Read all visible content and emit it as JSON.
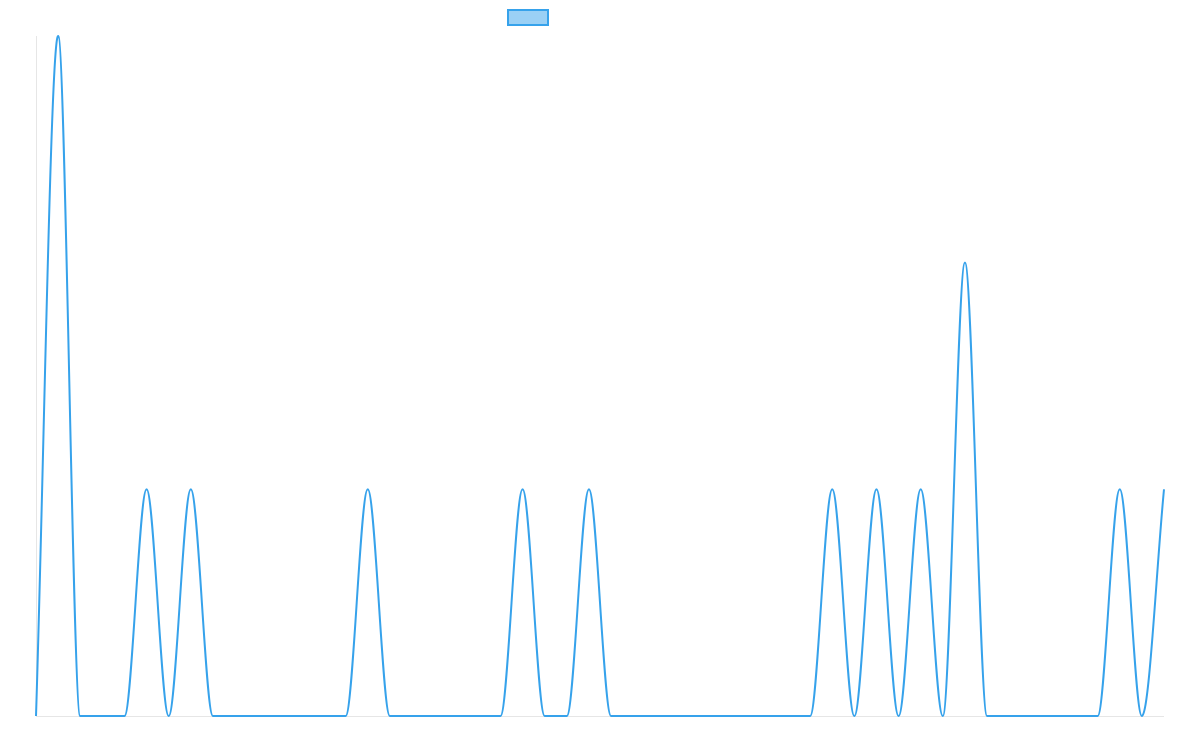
{
  "chart_data": {
    "type": "line",
    "x": [
      0,
      1,
      2,
      3,
      4,
      5,
      6,
      7,
      8,
      9,
      10,
      11,
      12,
      13,
      14,
      15,
      16,
      17,
      18,
      19,
      20,
      21,
      22,
      23,
      24,
      25,
      26,
      27,
      28,
      29,
      30,
      31,
      32,
      33,
      34,
      35,
      36,
      37,
      38,
      39,
      40,
      41,
      42,
      43,
      44,
      45,
      46,
      47,
      48,
      49,
      50,
      51
    ],
    "series": [
      {
        "values": [
          0,
          3,
          0,
          0,
          0,
          1,
          0,
          1,
          0,
          0,
          0,
          0,
          0,
          0,
          0,
          1,
          0,
          0,
          0,
          0,
          0,
          0,
          1,
          0,
          0,
          1,
          0,
          0,
          0,
          0,
          0,
          0,
          0,
          0,
          0,
          0,
          1,
          0,
          1,
          0,
          1,
          0,
          2,
          0,
          0,
          0,
          0,
          0,
          0,
          1,
          0,
          1
        ],
        "color": "#36A2EB",
        "fill": "#9AD0F5"
      }
    ],
    "ylim": [
      0,
      3
    ],
    "grid": false,
    "legend": {
      "position": "top"
    }
  }
}
